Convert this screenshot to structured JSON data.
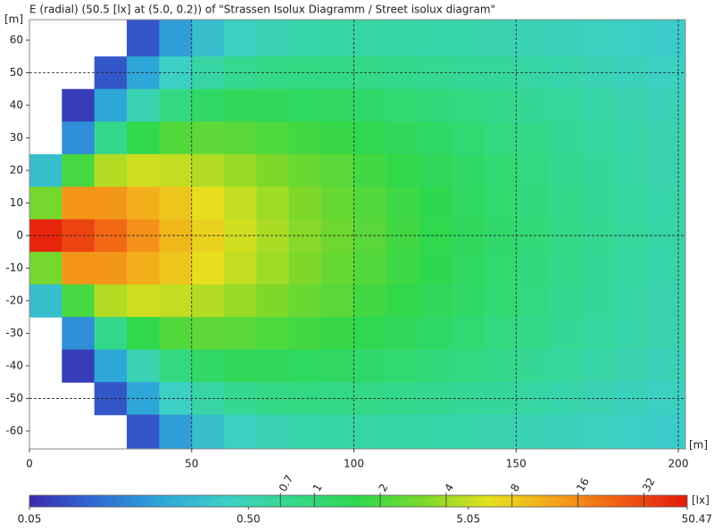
{
  "chart_data": {
    "type": "heatmap",
    "title": "E (radial) (50.5 [lx] at (5.0, 0.2)) of \"Strassen Isolux Diagramm / Street isolux diagram\"",
    "x_label": "[m]",
    "y_label": "[m]",
    "x": [
      5,
      15,
      25,
      35,
      45,
      55,
      65,
      75,
      85,
      95,
      105,
      115,
      125,
      135,
      145,
      155,
      165,
      175,
      185,
      195
    ],
    "y": [
      60,
      50,
      40,
      30,
      20,
      10,
      0,
      -10,
      -20,
      -30,
      -40,
      -50,
      -60
    ],
    "z": [
      [
        null,
        null,
        null,
        0.08,
        0.18,
        0.3,
        0.42,
        0.5,
        0.56,
        0.6,
        0.6,
        0.59,
        0.57,
        0.55,
        0.52,
        0.49,
        0.46,
        0.43,
        0.4,
        0.37
      ],
      [
        null,
        null,
        0.08,
        0.2,
        0.4,
        0.6,
        0.75,
        0.85,
        0.88,
        0.87,
        0.84,
        0.8,
        0.76,
        0.71,
        0.66,
        0.6,
        0.55,
        0.5,
        0.46,
        0.42
      ],
      [
        null,
        0.06,
        0.2,
        0.5,
        0.9,
        1.2,
        1.35,
        1.35,
        1.3,
        1.25,
        1.15,
        1.05,
        0.97,
        0.88,
        0.8,
        0.72,
        0.65,
        0.58,
        0.53,
        0.48
      ],
      [
        null,
        0.15,
        0.8,
        1.6,
        2.2,
        2.4,
        2.3,
        2.1,
        1.9,
        1.7,
        1.5,
        1.35,
        1.2,
        1.05,
        0.92,
        0.82,
        0.72,
        0.64,
        0.57,
        0.52
      ],
      [
        0.3,
        2,
        4.5,
        5.5,
        5,
        4.5,
        3.8,
        3.2,
        2.7,
        2.3,
        1.9,
        1.65,
        1.4,
        1.2,
        1.05,
        0.9,
        0.78,
        0.68,
        0.6,
        0.54
      ],
      [
        3,
        14,
        14,
        11,
        8.5,
        6.5,
        5,
        4,
        3.2,
        2.6,
        2.2,
        1.8,
        1.55,
        1.3,
        1.1,
        0.95,
        0.82,
        0.72,
        0.63,
        0.56
      ],
      [
        45,
        32,
        22,
        15,
        10,
        7.5,
        5.5,
        4.3,
        3.4,
        2.8,
        2.3,
        1.9,
        1.6,
        1.35,
        1.15,
        1.0,
        0.85,
        0.75,
        0.65,
        0.58
      ],
      [
        3,
        14,
        14,
        11,
        8.5,
        6.5,
        5,
        4,
        3.2,
        2.6,
        2.2,
        1.8,
        1.55,
        1.3,
        1.1,
        0.95,
        0.82,
        0.72,
        0.63,
        0.56
      ],
      [
        0.3,
        2,
        4.5,
        5.5,
        5,
        4.5,
        3.8,
        3.2,
        2.7,
        2.3,
        1.9,
        1.65,
        1.4,
        1.2,
        1.05,
        0.9,
        0.78,
        0.68,
        0.6,
        0.54
      ],
      [
        null,
        0.15,
        0.8,
        1.6,
        2.2,
        2.4,
        2.3,
        2.1,
        1.9,
        1.7,
        1.5,
        1.35,
        1.2,
        1.05,
        0.92,
        0.82,
        0.72,
        0.64,
        0.57,
        0.52
      ],
      [
        null,
        0.06,
        0.2,
        0.5,
        0.9,
        1.2,
        1.35,
        1.35,
        1.3,
        1.25,
        1.15,
        1.05,
        0.97,
        0.88,
        0.8,
        0.72,
        0.65,
        0.58,
        0.53,
        0.48
      ],
      [
        null,
        null,
        0.08,
        0.2,
        0.4,
        0.6,
        0.75,
        0.85,
        0.88,
        0.87,
        0.84,
        0.8,
        0.76,
        0.71,
        0.66,
        0.6,
        0.55,
        0.5,
        0.46,
        0.42
      ],
      [
        null,
        null,
        null,
        0.08,
        0.18,
        0.3,
        0.42,
        0.5,
        0.56,
        0.6,
        0.6,
        0.59,
        0.57,
        0.55,
        0.52,
        0.49,
        0.46,
        0.43,
        0.4,
        0.37
      ]
    ],
    "xlim": [
      0,
      202.2
    ],
    "ylim": [
      -65.5,
      66.3
    ],
    "xticks": [
      0,
      50,
      100,
      150,
      200
    ],
    "yticks": [
      -60,
      -50,
      -40,
      -30,
      -20,
      -10,
      0,
      10,
      20,
      30,
      40,
      50,
      60
    ],
    "xgrid": [
      50,
      100,
      150,
      200
    ],
    "ygrid": [
      -50,
      0,
      50
    ],
    "colorbar": {
      "scale": "log",
      "lim": [
        0.05,
        50.47
      ],
      "ticks": [
        0.05,
        {
          "value": 0.5,
          "label": "0.50"
        },
        5.05,
        50.47
      ],
      "contour_ticks": [
        0.7,
        1,
        2,
        4,
        8,
        16,
        32
      ],
      "label": "[lx]",
      "colors": [
        "#3a2cae",
        "#2f6bd6",
        "#2ea6d8",
        "#3ccfc6",
        "#33d98c",
        "#2ed84c",
        "#7cd82a",
        "#e6e01e",
        "#f5a21a",
        "#f05a14",
        "#e51a0a"
      ]
    }
  }
}
